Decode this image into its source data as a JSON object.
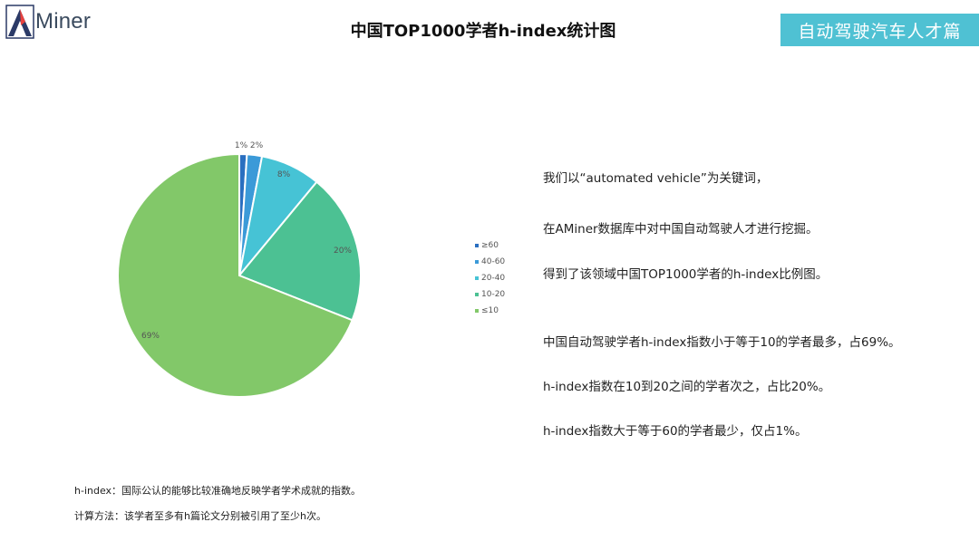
{
  "logo": {
    "text": "Miner",
    "mark_colors": [
      "#e8423f",
      "#2b3a67"
    ]
  },
  "header": {
    "title": "中国TOP1000学者h-index统计图",
    "badge": "自动驾驶汽车人才篇"
  },
  "colors": {
    "accent": "#4fc1d3"
  },
  "chart_data": {
    "type": "pie",
    "title": "",
    "categories": [
      "≥60",
      "40-60",
      "20-40",
      "10-20",
      "≤10"
    ],
    "values": [
      1,
      2,
      8,
      20,
      69
    ],
    "labels": [
      "1%",
      "2%",
      "8%",
      "20%",
      "69%"
    ],
    "colors": [
      "#2a6fc0",
      "#3b9ad8",
      "#46c3d5",
      "#4cc193",
      "#82c869"
    ],
    "legend_position": "right"
  },
  "description": [
    "我们以“automated vehicle”为关键词，",
    "在AMiner数据库中对中国自动驾驶人才进行挖掘。",
    "得到了该领域中国TOP1000学者的h-index比例图。",
    "中国自动驾驶学者h-index指数小于等于10的学者最多，占69%。",
    "h-index指数在10到20之间的学者次之，占比20%。",
    "h-index指数大于等于60的学者最少，仅占1%。"
  ],
  "footnote": {
    "line1": "h-index：国际公认的能够比较准确地反映学者学术成就的指数。",
    "line2": "计算方法：该学者至多有h篇论文分别被引用了至少h次。"
  }
}
